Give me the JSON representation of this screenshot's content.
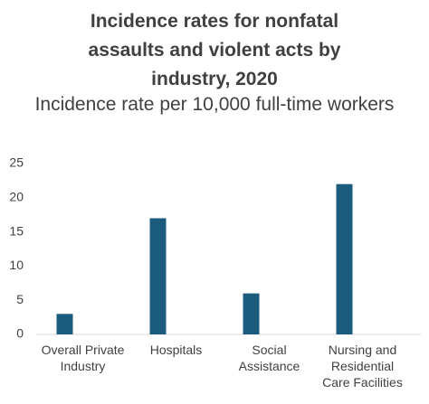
{
  "chart_data": {
    "type": "bar",
    "title": "Incidence rates for nonfatal assaults and violent acts by industry, 2020",
    "subtitle": "Incidence rate per 10,000 full-time workers",
    "categories": [
      "Overall Private Industry",
      "Hospitals",
      "Social Assistance",
      "Nursing and Residential Care Facilities"
    ],
    "values": [
      3,
      17,
      6,
      22
    ],
    "color": "#1b5b7e",
    "ylim": [
      0,
      25
    ],
    "yticks": [
      0,
      5,
      10,
      15,
      20,
      25
    ],
    "grid": false
  }
}
